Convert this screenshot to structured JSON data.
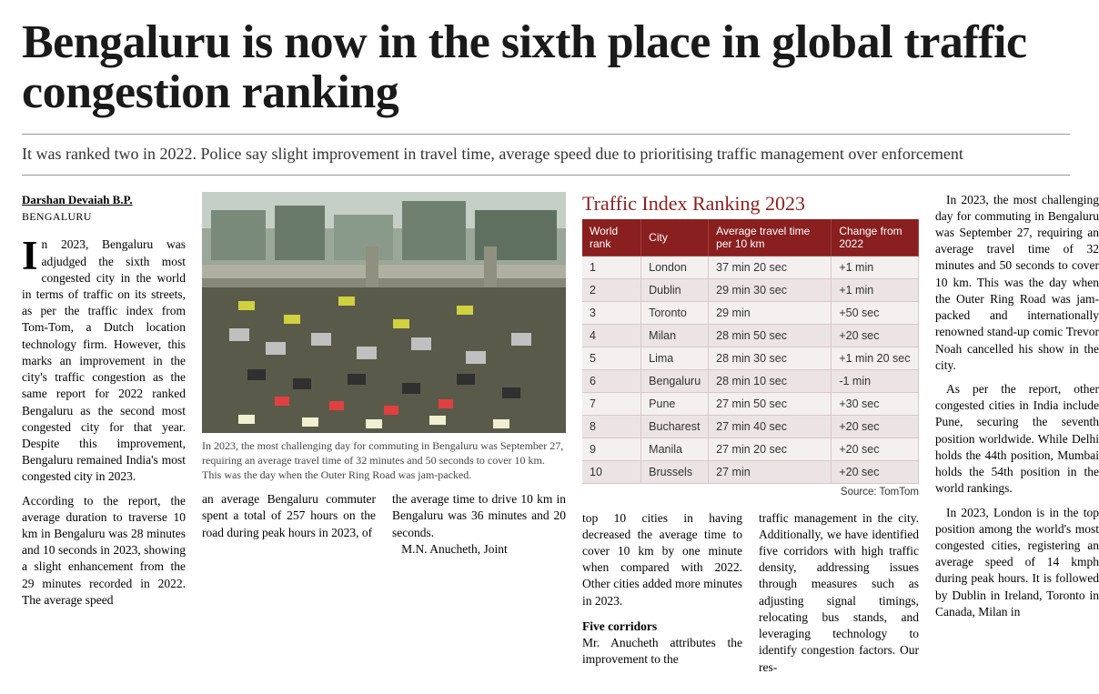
{
  "headline": "Bengaluru is now in the sixth place in global traffic congestion ranking",
  "subhead": "It was ranked two in 2022. Police say slight improvement in travel time, average speed due to prioritising traffic management over enforcement",
  "byline": "Darshan Devaiah B.P.",
  "location": "BENGALURU",
  "col1_p1": "In 2023, Bengaluru was adjudged the sixth most congested city in the world in terms of traffic on its streets, as per the traffic index from Tom-Tom, a Dutch location technology firm. However, this marks an improvement in the city's traffic congestion as the same report for 2022 ranked Bengaluru as the second most congested city for that year. Despite this improvement, Bengaluru remained India's most congested city in 2023.",
  "col1_p2": "According to the report, the average duration to traverse 10 km in Bengaluru was 28 minutes and 10 seconds in 2023, showing a slight enhancement from the 29 minutes recorded in 2022. The average speed",
  "caption": "In 2023, the most challenging day for commuting in Bengaluru was September 27, requiring an average travel time of 32 minutes and 50 seconds to cover 10 km. This was the day when the Outer Ring Road was jam-packed.",
  "bridge_left": "an average Bengaluru commuter spent a total of 257 hours on the road during peak hours in 2023, of",
  "bridge_right": "the average time to drive 10 km in Bengaluru was 36 minutes and 20 seconds.",
  "bridge_right_2": "M.N. Anucheth, Joint",
  "table_title": "Traffic Index Ranking 2023",
  "table_source": "Source: TomTom",
  "columns": [
    "World rank",
    "City",
    "Average travel time per 10 km",
    "Change from 2022"
  ],
  "rows": [
    [
      "1",
      "London",
      "37 min 20 sec",
      "+1 min"
    ],
    [
      "2",
      "Dublin",
      "29 min 30 sec",
      "+1 min"
    ],
    [
      "3",
      "Toronto",
      "29 min",
      "+50 sec"
    ],
    [
      "4",
      "Milan",
      "28 min 50 sec",
      "+20 sec"
    ],
    [
      "5",
      "Lima",
      "28 min 30 sec",
      "+1 min 20 sec"
    ],
    [
      "6",
      "Bengaluru",
      "28 min 10 sec",
      "-1 min"
    ],
    [
      "7",
      "Pune",
      "27 min 50 sec",
      "+30 sec"
    ],
    [
      "8",
      "Bucharest",
      "27 min 40 sec",
      "+20 sec"
    ],
    [
      "9",
      "Manila",
      "27 min 20 sec",
      "+20 sec"
    ],
    [
      "10",
      "Brussels",
      "27 min",
      "+20 sec"
    ]
  ],
  "col3_below_left": "top 10 cities in having decreased the average time to cover 10 km by one minute when compared with 2022. Other cities added more minutes in 2023.",
  "section_head": "Five corridors",
  "col3_below_left2": "Mr. Anucheth attributes the improvement to the",
  "col3_below_right": "traffic management in the city. Additionally, we have identified five corridors with high traffic density, addressing issues through measures such as adjusting signal timings, relocating bus stands, and leveraging technology to identify congestion factors. Our res-",
  "col4_p1": "In 2023, the most challenging day for commuting in Bengaluru was September 27, requiring an average travel time of 32 minutes and 50 seconds to cover 10 km. This was the day when the Outer Ring Road was jam-packed and internationally renowned stand-up comic Trevor Noah cancelled his show in the city.",
  "col4_p2": "As per the report, other congested cities in India include Pune, securing the seventh position worldwide. While Delhi holds the 44th position, Mumbai holds the 54th position in the world rankings.",
  "col4_p3": "In 2023, London is in the top position among the world's most congested cities, registering an average speed of 14 kmph during peak hours. It is followed by Dublin in Ireland, Toronto in Canada, Milan in"
}
